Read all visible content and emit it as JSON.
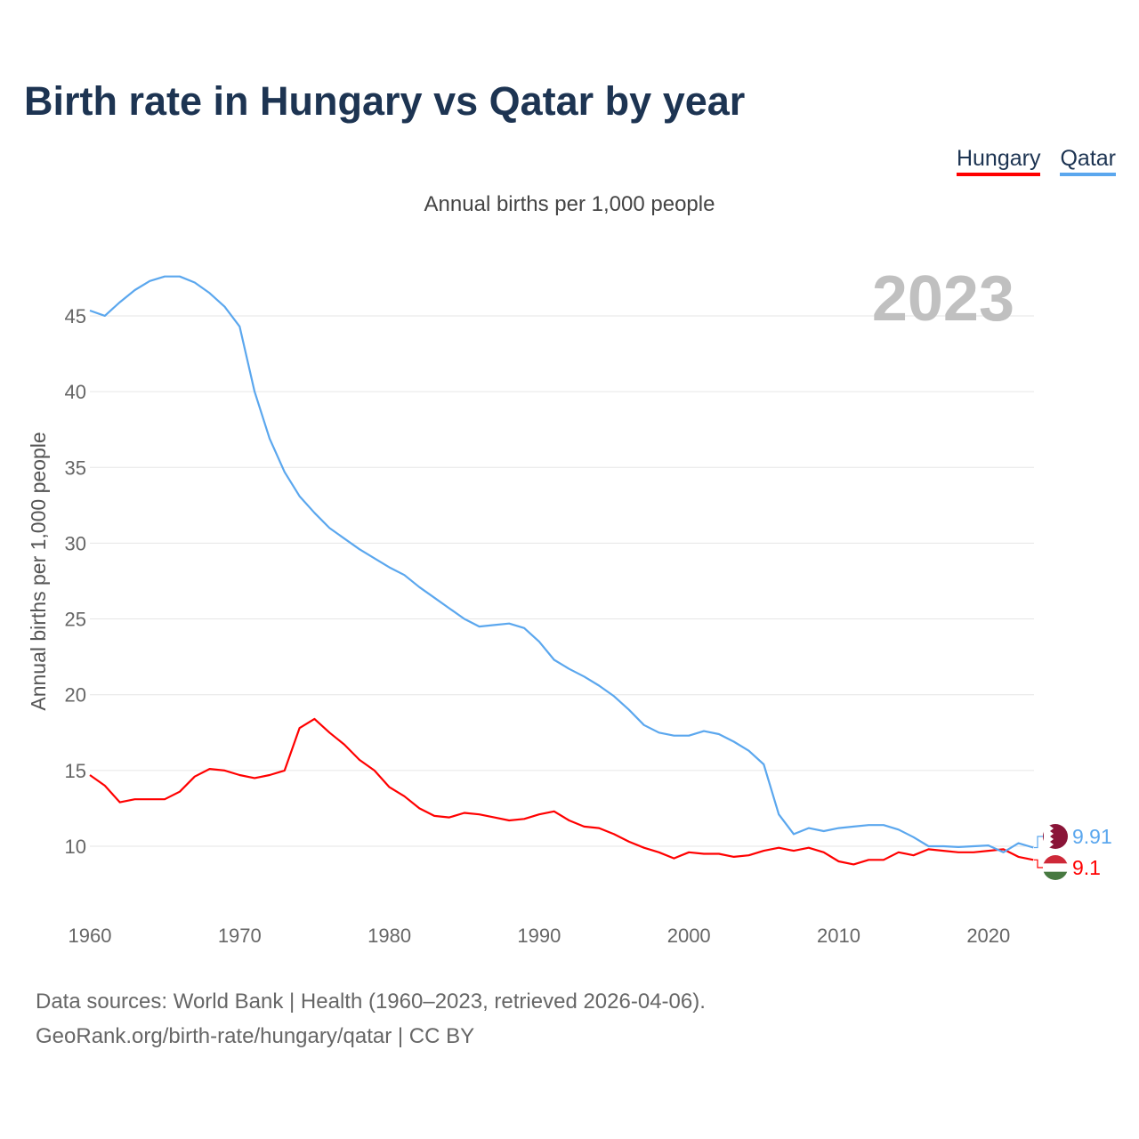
{
  "title": "Birth rate in Hungary vs Qatar by year",
  "legend": [
    {
      "label": "Hungary",
      "color": "#ff0000"
    },
    {
      "label": "Qatar",
      "color": "#5ba7ee"
    }
  ],
  "source": {
    "line1": "Data sources: World Bank | Health (1960–2023, retrieved 2026-04-06).",
    "line2": "GeoRank.org/birth-rate/hungary/qatar | CC BY"
  },
  "chart_data": {
    "type": "line",
    "title": "Birth rate in Hungary vs Qatar by year",
    "subtitle": "Annual births per 1,000 people",
    "ylabel": "Annual births per 1,000 people",
    "xlabel": "",
    "year_watermark": "2023",
    "xlim": [
      1960,
      2023
    ],
    "ylim": [
      6,
      48
    ],
    "x_ticks": [
      "1960",
      "1970",
      "1980",
      "1990",
      "2000",
      "2010",
      "2020"
    ],
    "y_ticks": [
      "10",
      "15",
      "20",
      "25",
      "30",
      "35",
      "40",
      "45"
    ],
    "grid": true,
    "x_start": 1960,
    "series": [
      {
        "name": "Hungary",
        "color": "#ff0000",
        "end_label": "9.1",
        "values": [
          14.7,
          14.0,
          12.9,
          13.1,
          13.1,
          13.1,
          13.6,
          14.6,
          15.1,
          15.0,
          14.7,
          14.5,
          14.7,
          15.0,
          17.8,
          18.4,
          17.5,
          16.7,
          15.7,
          15.0,
          13.9,
          13.3,
          12.5,
          12.0,
          11.9,
          12.2,
          12.1,
          11.9,
          11.7,
          11.8,
          12.1,
          12.3,
          11.7,
          11.3,
          11.2,
          10.8,
          10.3,
          9.9,
          9.6,
          9.2,
          9.6,
          9.5,
          9.5,
          9.3,
          9.4,
          9.7,
          9.9,
          9.7,
          9.9,
          9.6,
          9.0,
          8.8,
          9.1,
          9.1,
          9.6,
          9.4,
          9.8,
          9.7,
          9.6,
          9.6,
          9.7,
          9.8,
          9.3,
          9.1
        ]
      },
      {
        "name": "Qatar",
        "color": "#5ba7ee",
        "end_label": "9.91",
        "values": [
          45.35,
          45.0,
          45.9,
          46.7,
          47.3,
          47.6,
          47.6,
          47.2,
          46.5,
          45.6,
          44.3,
          40.0,
          36.9,
          34.7,
          33.1,
          32.0,
          31.0,
          30.3,
          29.6,
          29.0,
          28.4,
          27.9,
          27.1,
          26.4,
          25.7,
          25.0,
          24.5,
          24.6,
          24.7,
          24.4,
          23.5,
          22.3,
          21.7,
          21.2,
          20.6,
          19.9,
          19.0,
          18.0,
          17.5,
          17.3,
          17.3,
          17.6,
          17.4,
          16.9,
          16.3,
          15.4,
          12.1,
          10.8,
          11.2,
          11.0,
          11.2,
          11.3,
          11.4,
          11.4,
          11.1,
          10.6,
          10.0,
          10.0,
          9.95,
          10.0,
          10.05,
          9.6,
          10.2,
          9.91
        ]
      }
    ]
  }
}
